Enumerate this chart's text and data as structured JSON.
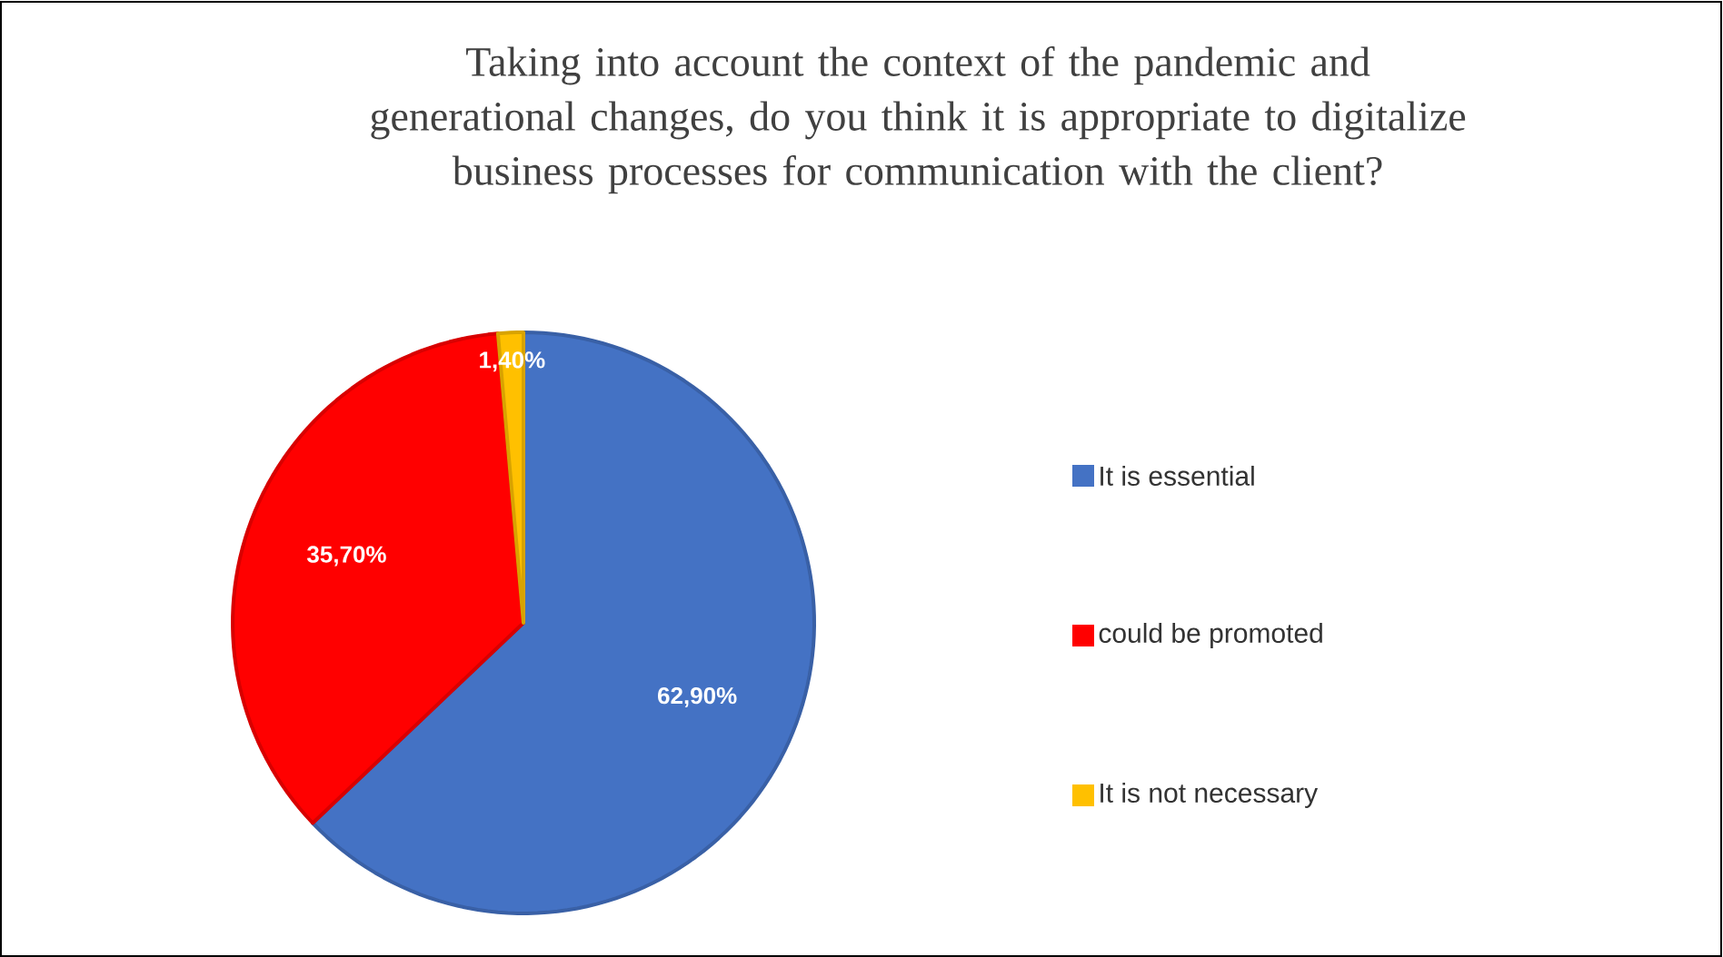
{
  "chart_data": {
    "type": "pie",
    "title": "Taking into account the context of the pandemic and generational changes, do you think it is appropriate to digitalize business processes for communication with the client?",
    "categories": [
      "It is essential",
      "could be promoted",
      "It is not necessary"
    ],
    "values": [
      62.9,
      35.7,
      1.4
    ],
    "value_labels": [
      "62,90%",
      "35,70%",
      "1,40%"
    ],
    "colors": [
      "#4472c4",
      "#ff0000",
      "#ffc000"
    ],
    "legend": "right"
  }
}
